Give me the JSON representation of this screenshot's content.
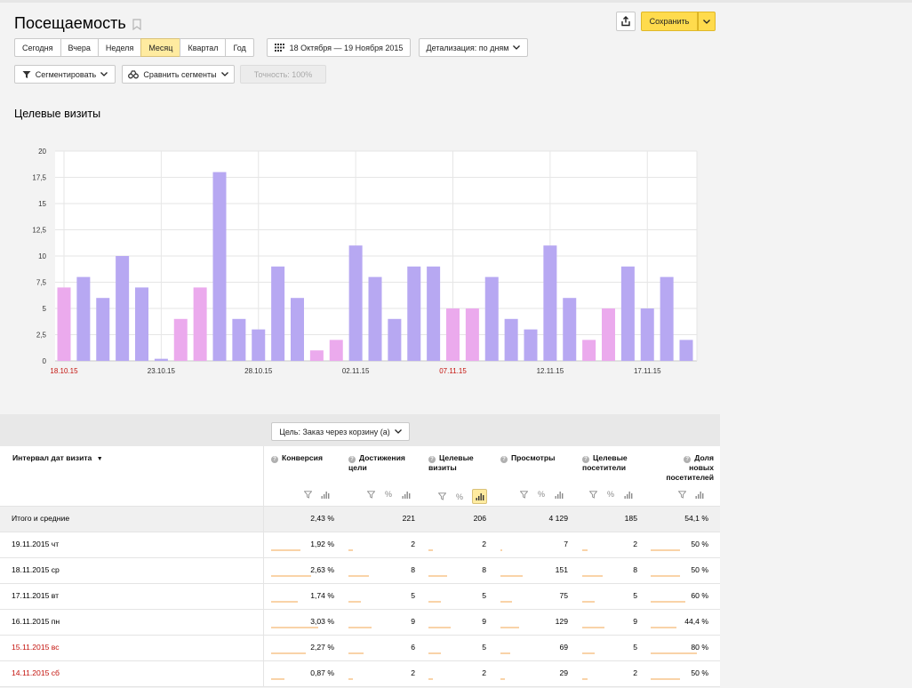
{
  "header": {
    "title": "Посещаемость",
    "save_label": "Сохранить"
  },
  "periods": [
    "Сегодня",
    "Вчера",
    "Неделя",
    "Месяц",
    "Квартал",
    "Год"
  ],
  "active_period": "Месяц",
  "date_range": "18 Октября — 19 Ноября 2015",
  "detail": "Детализация: по дням",
  "segment_label": "Сегментировать",
  "compare_label": "Сравнить сегменты",
  "accuracy_label": "Точность: 100%",
  "chart_title": "Целевые визиты",
  "chart_data": {
    "type": "bar",
    "title": "Целевые визиты",
    "ylim": [
      0,
      20
    ],
    "yticks": [
      "0",
      "2,5",
      "5",
      "7,5",
      "10",
      "12,5",
      "15",
      "17,5",
      "20"
    ],
    "x_labels": [
      {
        "index": 0,
        "label": "18.10.15",
        "weekend": true
      },
      {
        "index": 5,
        "label": "23.10.15",
        "weekend": false
      },
      {
        "index": 10,
        "label": "28.10.15",
        "weekend": false
      },
      {
        "index": 15,
        "label": "02.11.15",
        "weekend": false
      },
      {
        "index": 20,
        "label": "07.11.15",
        "weekend": true
      },
      {
        "index": 25,
        "label": "12.11.15",
        "weekend": false
      },
      {
        "index": 30,
        "label": "17.11.15",
        "weekend": false
      }
    ],
    "values": [
      7,
      8,
      6,
      10,
      7,
      0.2,
      4,
      7,
      18,
      4,
      3,
      9,
      6,
      1,
      2,
      11,
      8,
      4,
      9,
      9,
      5,
      5,
      8,
      4,
      3,
      11,
      6,
      2,
      5,
      9,
      5,
      8,
      2
    ],
    "weekend": [
      true,
      false,
      false,
      false,
      false,
      false,
      true,
      true,
      false,
      false,
      false,
      false,
      false,
      true,
      true,
      false,
      false,
      false,
      false,
      false,
      true,
      true,
      false,
      false,
      false,
      false,
      false,
      true,
      true,
      false,
      false,
      false,
      false
    ],
    "colors": {
      "weekday": "#b7a8f2",
      "weekend": "#ebaaed"
    }
  },
  "goal_select": "Цель: Заказ через корзину (а)",
  "table": {
    "first_header": "Интервал дат визита",
    "sort_mark": "▼",
    "columns": [
      {
        "lines": [
          "Конверсия"
        ]
      },
      {
        "lines": [
          "Достижения",
          "цели"
        ]
      },
      {
        "lines": [
          "Целевые",
          "визиты"
        ]
      },
      {
        "lines": [
          "Просмотры"
        ]
      },
      {
        "lines": [
          "Целевые",
          "посетители"
        ]
      },
      {
        "lines": [
          "Доля",
          "новых",
          "посетителей"
        ]
      }
    ],
    "total": {
      "label": "Итого и средние",
      "values": [
        "2,43 %",
        "221",
        "206",
        "4 129",
        "185",
        "54,1 %"
      ]
    },
    "rows": [
      {
        "date": "19.11.2015 чт",
        "weekend": false,
        "values": [
          "1,92 %",
          "2",
          "2",
          "7",
          "2",
          "50 %"
        ],
        "fill": [
          0.47,
          0.07,
          0.08,
          0.02,
          0.09,
          0.5
        ]
      },
      {
        "date": "18.11.2015 ср",
        "weekend": false,
        "values": [
          "2,63 %",
          "8",
          "8",
          "151",
          "8",
          "50 %"
        ],
        "fill": [
          0.64,
          0.3,
          0.33,
          0.33,
          0.37,
          0.5
        ]
      },
      {
        "date": "17.11.2015 вт",
        "weekend": false,
        "values": [
          "1,74 %",
          "5",
          "5",
          "75",
          "5",
          "60 %"
        ],
        "fill": [
          0.42,
          0.19,
          0.21,
          0.17,
          0.23,
          0.6
        ]
      },
      {
        "date": "16.11.2015 пн",
        "weekend": false,
        "values": [
          "3,03 %",
          "9",
          "9",
          "129",
          "9",
          "44,4 %"
        ],
        "fill": [
          0.74,
          0.34,
          0.38,
          0.28,
          0.41,
          0.44
        ]
      },
      {
        "date": "15.11.2015 вс",
        "weekend": true,
        "values": [
          "2,27 %",
          "6",
          "5",
          "69",
          "5",
          "80 %"
        ],
        "fill": [
          0.55,
          0.23,
          0.21,
          0.15,
          0.23,
          0.8
        ]
      },
      {
        "date": "14.11.2015 сб",
        "weekend": true,
        "values": [
          "0,87 %",
          "2",
          "2",
          "29",
          "2",
          "50 %"
        ],
        "fill": [
          0.21,
          0.07,
          0.08,
          0.06,
          0.09,
          0.5
        ]
      }
    ]
  }
}
